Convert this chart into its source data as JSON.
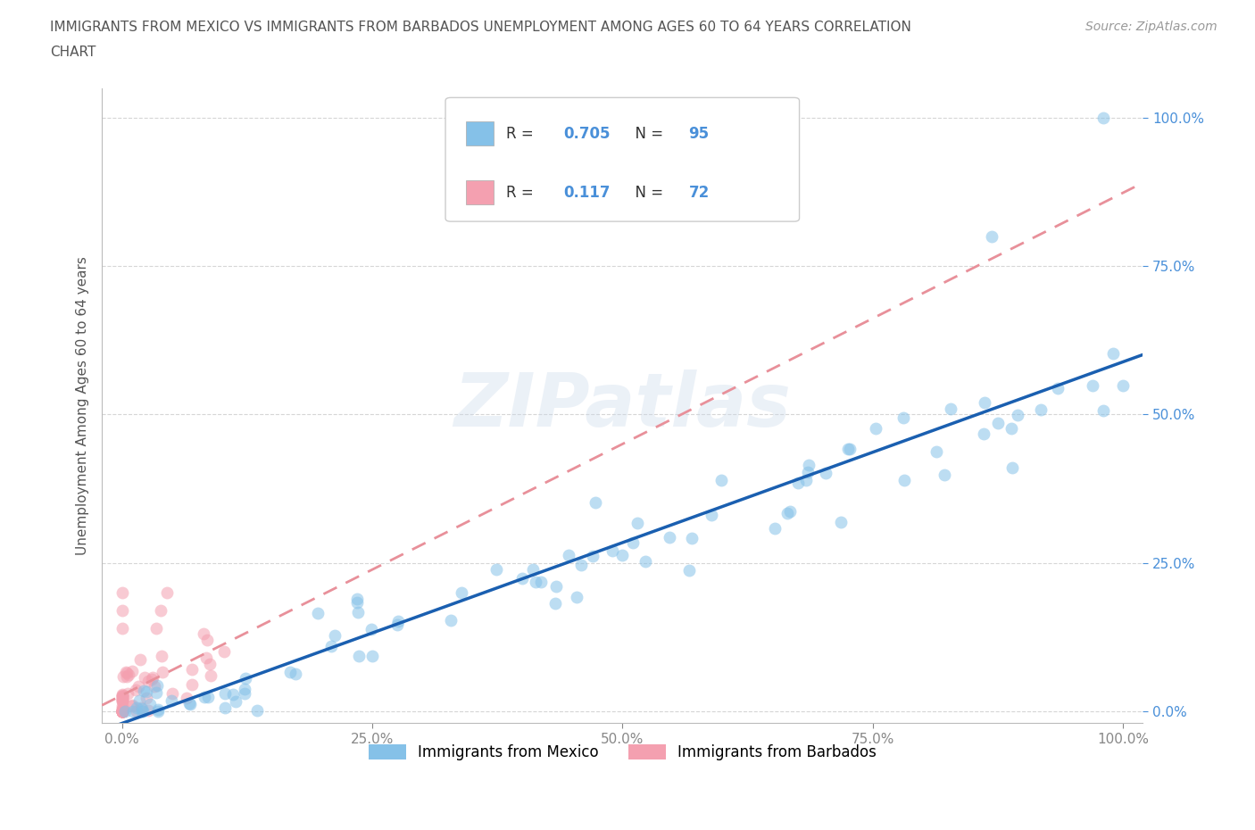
{
  "title_line1": "IMMIGRANTS FROM MEXICO VS IMMIGRANTS FROM BARBADOS UNEMPLOYMENT AMONG AGES 60 TO 64 YEARS CORRELATION",
  "title_line2": "CHART",
  "source": "Source: ZipAtlas.com",
  "ylabel": "Unemployment Among Ages 60 to 64 years",
  "xlim": [
    -0.02,
    1.02
  ],
  "ylim": [
    -0.02,
    1.05
  ],
  "xticks": [
    0.0,
    0.25,
    0.5,
    0.75,
    1.0
  ],
  "yticks": [
    0.0,
    0.25,
    0.5,
    0.75,
    1.0
  ],
  "xticklabels": [
    "0.0%",
    "25.0%",
    "50.0%",
    "75.0%",
    "100.0%"
  ],
  "yticklabels": [
    "0.0%",
    "25.0%",
    "50.0%",
    "75.0%",
    "100.0%"
  ],
  "mexico_color": "#85c1e8",
  "barbados_color": "#f4a0b0",
  "mexico_R": 0.705,
  "mexico_N": 95,
  "barbados_R": 0.117,
  "barbados_N": 72,
  "mexico_line_color": "#1a5fb0",
  "barbados_line_color": "#e8909a",
  "watermark_text": "ZIPatlas",
  "legend_label_mexico": "Immigrants from Mexico",
  "legend_label_barbados": "Immigrants from Barbados",
  "background_color": "#ffffff",
  "grid_color": "#cccccc",
  "tick_color_y": "#4a90d9",
  "tick_color_x": "#888888",
  "title_color": "#555555"
}
